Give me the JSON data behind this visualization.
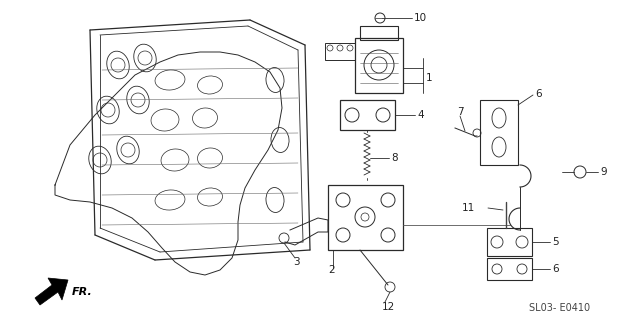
{
  "background_color": "#ffffff",
  "diagram_code": "SL03- E0410",
  "fr_label": "FR.",
  "line_color": "#2a2a2a",
  "text_color": "#222222",
  "font_size_labels": 7.5,
  "font_size_code": 7,
  "figsize": [
    6.4,
    3.19
  ],
  "dpi": 100,
  "xlim": [
    0,
    640
  ],
  "ylim": [
    0,
    319
  ]
}
